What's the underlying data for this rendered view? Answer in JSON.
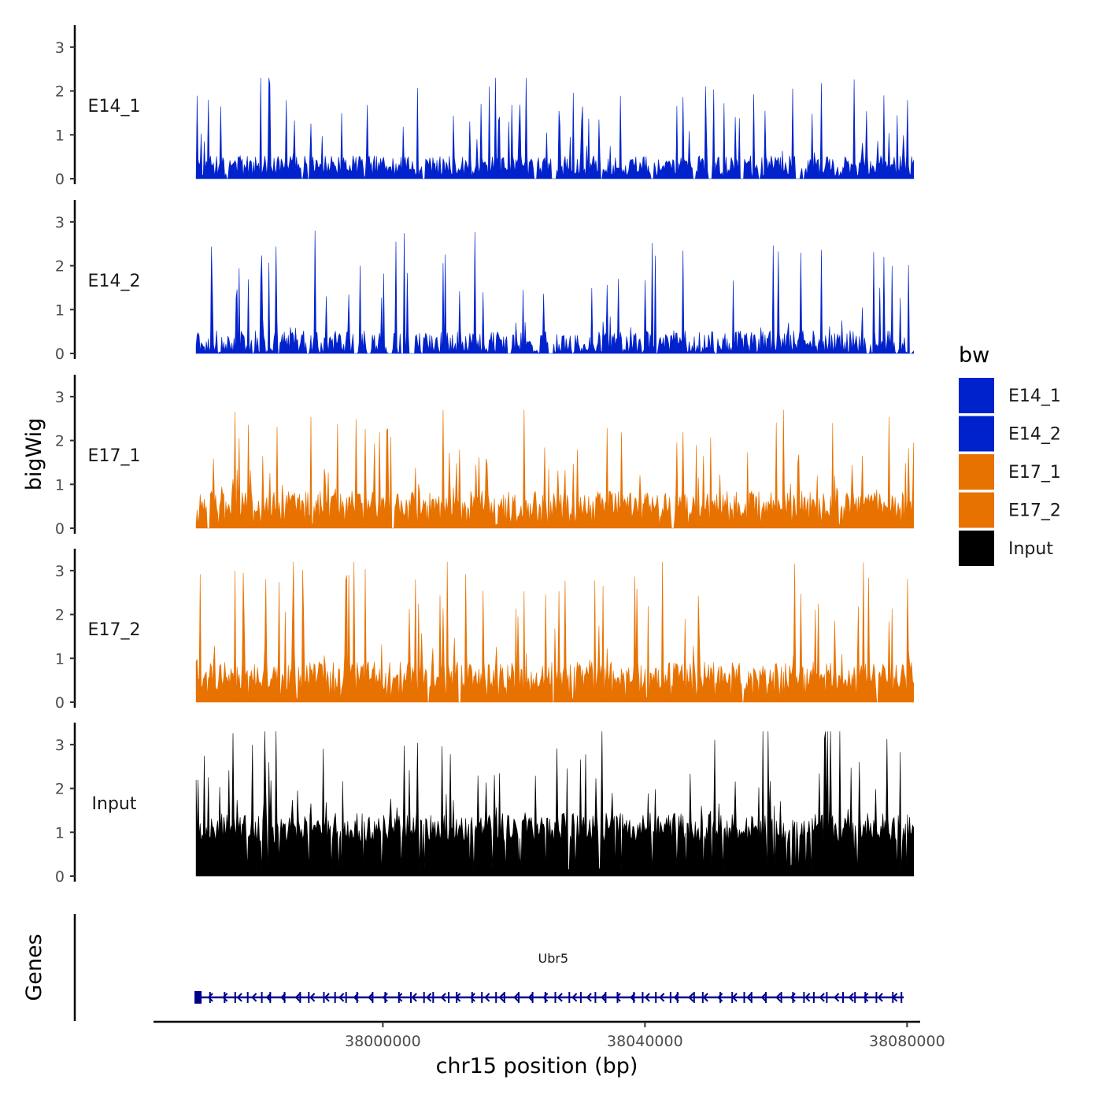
{
  "chart_data": {
    "type": "area",
    "title": "",
    "ylabel": "bigWig",
    "xlabel": "chr15 position (bp)",
    "chromosome": "chr15",
    "xlim": [
      37965000,
      38082000
    ],
    "data_xrange": [
      37971500,
      38081000
    ],
    "ylim": [
      0,
      3.5
    ],
    "yticks": [
      0,
      1,
      2,
      3
    ],
    "xticks": [
      38000000,
      38040000,
      38080000
    ],
    "tracks": [
      {
        "name": "E14_1",
        "color": "#0022CC",
        "mean": 0.3,
        "var": 0.45,
        "max_peak": 2.3,
        "seed": 11,
        "gap_frac": 0.06
      },
      {
        "name": "E14_2",
        "color": "#0022CC",
        "mean": 0.25,
        "var": 0.55,
        "max_peak": 2.8,
        "seed": 23,
        "gap_frac": 0.07
      },
      {
        "name": "E17_1",
        "color": "#E87200",
        "mean": 0.55,
        "var": 0.6,
        "max_peak": 2.7,
        "seed": 37,
        "gap_frac": 0.03
      },
      {
        "name": "E17_2",
        "color": "#E87200",
        "mean": 0.6,
        "var": 0.65,
        "max_peak": 3.2,
        "seed": 41,
        "gap_frac": 0.03
      },
      {
        "name": "Input",
        "color": "#000000",
        "mean": 1.1,
        "var": 0.7,
        "max_peak": 3.3,
        "seed": 53,
        "gap_frac": 0.0
      }
    ],
    "genes_panel_label": "Genes",
    "gene": {
      "name": "Ubr5",
      "start": 37971500,
      "end": 38079500,
      "strand": "-",
      "color": "#00008B"
    },
    "legend": {
      "title": "bw",
      "entries": [
        {
          "label": "E14_1",
          "color": "#0022CC"
        },
        {
          "label": "E14_2",
          "color": "#0022CC"
        },
        {
          "label": "E17_1",
          "color": "#E87200"
        },
        {
          "label": "E17_2",
          "color": "#E87200"
        },
        {
          "label": "Input",
          "color": "#000000"
        }
      ]
    }
  }
}
